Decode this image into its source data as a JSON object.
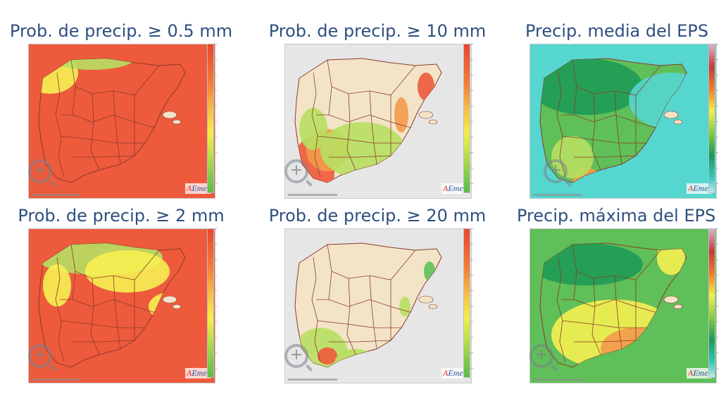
{
  "panels": [
    {
      "title": "Prob. de precip.  ≥ 0.5 mm",
      "type": "probability"
    },
    {
      "title": "Prob. de precip.  ≥ 10 mm",
      "type": "probability"
    },
    {
      "title": "Precip. media del EPS",
      "type": "precipitation"
    },
    {
      "title": "Prob. de precip.  ≥ 2 mm",
      "type": "probability"
    },
    {
      "title": "Prob. de precip.  ≥ 20 mm",
      "type": "probability"
    },
    {
      "title": "Precip. máxima del EPS",
      "type": "precipitation"
    }
  ],
  "logo": {
    "a": "A",
    "rest": "Emet"
  },
  "colors": {
    "title": "#2f4f7f",
    "land": "#f3e4c8",
    "sea": "#e6e6e6",
    "red": "#ee5a3c",
    "orange": "#f39a4b",
    "yellow": "#f6ef52",
    "green_light": "#b7df62",
    "green": "#5fbf58",
    "green_dark": "#1f9b57",
    "cyan": "#55d6cf",
    "borders": "#8b3a2a"
  },
  "icons": {
    "zoom": "zoom-in-icon"
  }
}
